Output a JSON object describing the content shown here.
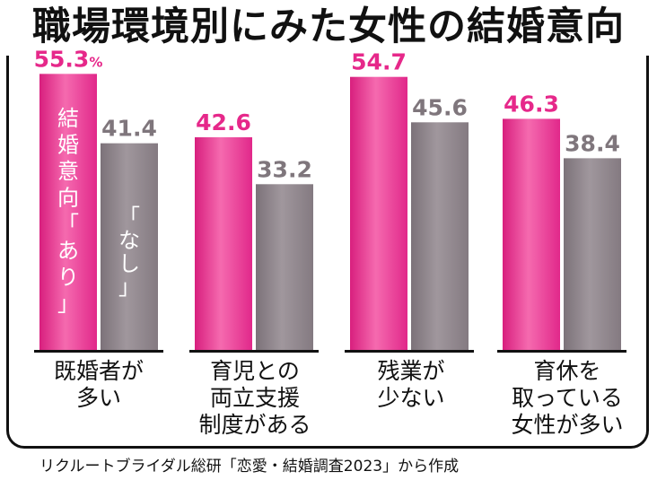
{
  "title": "職場環境別にみた女性の結婚意向",
  "source": "リクルートブライダル総研「恋愛・結婚調査2023」から作成",
  "colors": {
    "series_yes": "#ec3b96",
    "series_no": "#8a8087",
    "label_yes": "#e6288a",
    "label_no": "#7f767c",
    "text": "#111111"
  },
  "chart_data": {
    "type": "bar",
    "unit": "%",
    "categories": [
      "既婚者が\n多い",
      "育児との\n両立支援\n制度がある",
      "残業が\n少ない",
      "育休を\n取っている\n女性が多い"
    ],
    "series": [
      {
        "name": "結婚意向「あり」",
        "name_chars": [
          "結",
          "婚",
          "意",
          "向",
          "「",
          "あ",
          "り",
          "」"
        ],
        "values": [
          55.3,
          42.6,
          54.7,
          46.3
        ]
      },
      {
        "name": "「なし」",
        "name_chars": [
          "「",
          "な",
          "し",
          "」"
        ],
        "values": [
          41.4,
          33.2,
          45.6,
          38.4
        ]
      }
    ],
    "ylim": [
      0,
      57.7
    ]
  }
}
